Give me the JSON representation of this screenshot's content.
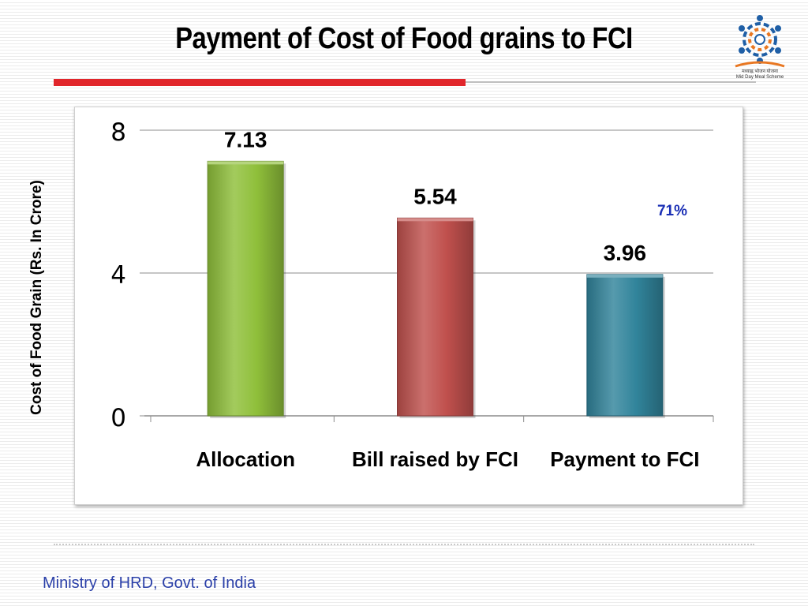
{
  "slide": {
    "title": "Payment of Cost of Food grains to FCI",
    "footer": "Ministry of HRD, Govt. of India",
    "logo_caption_line1": "मध्याह्न भोजन योजना",
    "logo_caption_line2": "Mid Day Meal Scheme",
    "annotation": "71%"
  },
  "colors": {
    "title_rule": "#e1262b",
    "footer_text": "#2a3fa8",
    "annotation_text": "#1a2fb5"
  },
  "chart_data": {
    "type": "bar",
    "title": "",
    "ylabel": "Cost of Food Grain (Rs. In Crore)",
    "xlabel": "",
    "categories": [
      "Allocation",
      "Bill raised by FCI",
      "Payment to FCI"
    ],
    "values": [
      7.13,
      5.54,
      3.96
    ],
    "value_labels": [
      "7.13",
      "5.54",
      "3.96"
    ],
    "bar_colors": [
      "#8fbf3a",
      "#c0504d",
      "#31849b"
    ],
    "ylim": [
      0,
      8
    ],
    "yticks": [
      0,
      4,
      8
    ],
    "grid": true,
    "legend": "none"
  }
}
